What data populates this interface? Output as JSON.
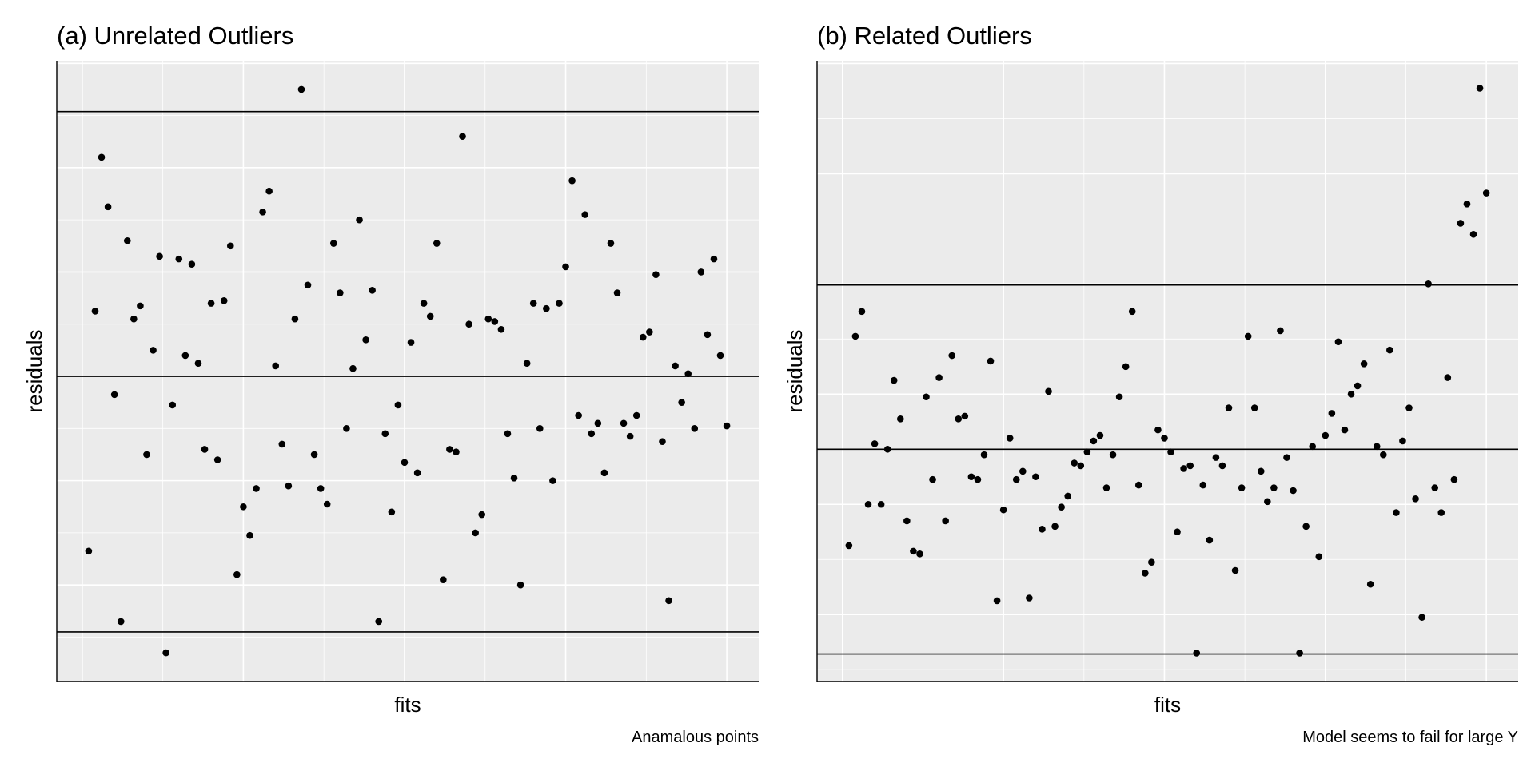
{
  "chart_data": [
    {
      "type": "scatter",
      "title": "(a) Unrelated Outliers",
      "xlabel": "fits",
      "ylabel": "residuals",
      "caption": "Anamalous points",
      "color": "#000000",
      "xlim": [
        -3.95,
        104.95
      ],
      "ylim": [
        -11.7,
        12.1
      ],
      "x_grid": [
        0,
        12.5,
        25,
        37.5,
        50,
        62.5,
        75,
        87.5,
        100
      ],
      "y_grid": [
        -10,
        -8,
        -6,
        -4,
        -2,
        0,
        2,
        4,
        6,
        8,
        10,
        12
      ],
      "hlines": [
        10.15,
        0,
        -9.8
      ],
      "x": [
        1,
        2,
        3,
        4,
        5,
        6,
        7,
        8,
        9,
        10,
        11,
        12,
        13,
        14,
        15,
        16,
        17,
        18,
        19,
        20,
        21,
        22,
        23,
        24,
        25,
        26,
        27,
        28,
        29,
        30,
        31,
        32,
        33,
        34,
        35,
        36,
        37,
        38,
        39,
        40,
        41,
        42,
        43,
        44,
        45,
        46,
        47,
        48,
        49,
        50,
        51,
        52,
        53,
        54,
        55,
        56,
        57,
        58,
        59,
        60,
        61,
        62,
        63,
        64,
        65,
        66,
        67,
        68,
        69,
        70,
        71,
        72,
        73,
        74,
        75,
        76,
        77,
        78,
        79,
        80,
        81,
        82,
        83,
        84,
        85,
        86,
        87,
        88,
        89,
        90,
        91,
        92,
        93,
        94,
        95,
        96,
        97,
        98,
        99,
        100
      ],
      "values": [
        -6.7,
        2.5,
        8.4,
        6.5,
        -0.7,
        -9.4,
        5.2,
        2.2,
        2.7,
        -3.0,
        1.0,
        4.6,
        -10.6,
        -1.1,
        4.5,
        0.8,
        4.3,
        0.5,
        -2.8,
        2.8,
        -3.2,
        2.9,
        5.0,
        -7.6,
        -5.0,
        -6.1,
        -4.3,
        6.3,
        7.1,
        0.4,
        -2.6,
        -4.2,
        2.2,
        11.0,
        3.5,
        -3.0,
        -4.3,
        -4.9,
        5.1,
        3.2,
        -2.0,
        0.3,
        6.0,
        1.4,
        3.3,
        -9.4,
        -2.2,
        -5.2,
        -1.1,
        -3.3,
        1.3,
        -3.7,
        2.8,
        2.3,
        5.1,
        -7.8,
        -2.8,
        -2.9,
        9.2,
        2.0,
        -6.0,
        -5.3,
        2.2,
        2.1,
        1.8,
        -2.2,
        -3.9,
        -8.0,
        0.5,
        2.8,
        -2.0,
        2.6,
        -4.0,
        2.8,
        4.2,
        7.5,
        -1.5,
        6.2,
        -2.2,
        -1.8,
        -3.7,
        5.1,
        3.2,
        -1.8,
        -2.3,
        -1.5,
        1.5,
        1.7,
        3.9,
        -2.5,
        -8.6,
        0.4,
        -1.0,
        0.1,
        -2.0,
        4.0,
        1.6,
        4.5,
        0.8,
        -1.9
      ]
    },
    {
      "type": "scatter",
      "title": "(b) Related Outliers",
      "xlabel": "fits",
      "ylabel": "residuals",
      "caption": "Model seems to fail for large Y",
      "color": "#000000",
      "xlim": [
        -3.95,
        104.95
      ],
      "ylim": [
        -8.43,
        14.1
      ],
      "x_grid": [
        0,
        12.5,
        25,
        37.5,
        50,
        62.5,
        75,
        87.5,
        100
      ],
      "y_grid": [
        -8,
        -6,
        -4,
        -2,
        0,
        2,
        4,
        6,
        8,
        10,
        12,
        14
      ],
      "hlines": [
        5.96,
        0,
        -7.43
      ],
      "x": [
        1,
        2,
        3,
        4,
        5,
        6,
        7,
        8,
        9,
        10,
        11,
        12,
        13,
        14,
        15,
        16,
        17,
        18,
        19,
        20,
        21,
        22,
        23,
        24,
        25,
        26,
        27,
        28,
        29,
        30,
        31,
        32,
        33,
        34,
        35,
        36,
        37,
        38,
        39,
        40,
        41,
        42,
        43,
        44,
        45,
        46,
        47,
        48,
        49,
        50,
        51,
        52,
        53,
        54,
        55,
        56,
        57,
        58,
        59,
        60,
        61,
        62,
        63,
        64,
        65,
        66,
        67,
        68,
        69,
        70,
        71,
        72,
        73,
        74,
        75,
        76,
        77,
        78,
        79,
        80,
        81,
        82,
        83,
        84,
        85,
        86,
        87,
        88,
        89,
        90,
        91,
        92,
        93,
        94,
        95,
        96,
        97,
        98,
        99,
        100
      ],
      "values": [
        -3.5,
        4.1,
        5.0,
        -2.0,
        0.2,
        -2.0,
        0.0,
        2.5,
        1.1,
        -2.6,
        -3.7,
        -3.8,
        1.9,
        -1.1,
        2.6,
        -2.6,
        3.4,
        1.1,
        1.2,
        -1.0,
        -1.1,
        -0.2,
        3.2,
        -5.5,
        -2.2,
        0.4,
        -1.1,
        -0.8,
        -5.4,
        -1.0,
        -2.9,
        2.1,
        -2.8,
        -2.1,
        -1.7,
        -0.5,
        -0.6,
        -0.1,
        0.3,
        0.5,
        -1.4,
        -0.2,
        1.9,
        3.0,
        5.0,
        -1.3,
        -4.5,
        -4.1,
        0.7,
        0.4,
        -0.1,
        -3.0,
        -0.7,
        -0.6,
        -7.4,
        -1.3,
        -3.3,
        -0.3,
        -0.6,
        1.5,
        -4.4,
        -1.4,
        4.1,
        1.5,
        -0.8,
        -1.9,
        -1.4,
        4.3,
        -0.3,
        -1.5,
        -7.4,
        -2.8,
        0.1,
        -3.9,
        0.5,
        1.3,
        3.9,
        0.7,
        2.0,
        2.3,
        3.1,
        -4.9,
        0.1,
        -0.2,
        3.6,
        -2.3,
        0.3,
        1.5,
        -1.8,
        -6.1,
        6.0,
        -1.4,
        -2.3,
        2.6,
        -1.1,
        8.2,
        8.9,
        7.8,
        13.1,
        9.3
      ]
    }
  ]
}
